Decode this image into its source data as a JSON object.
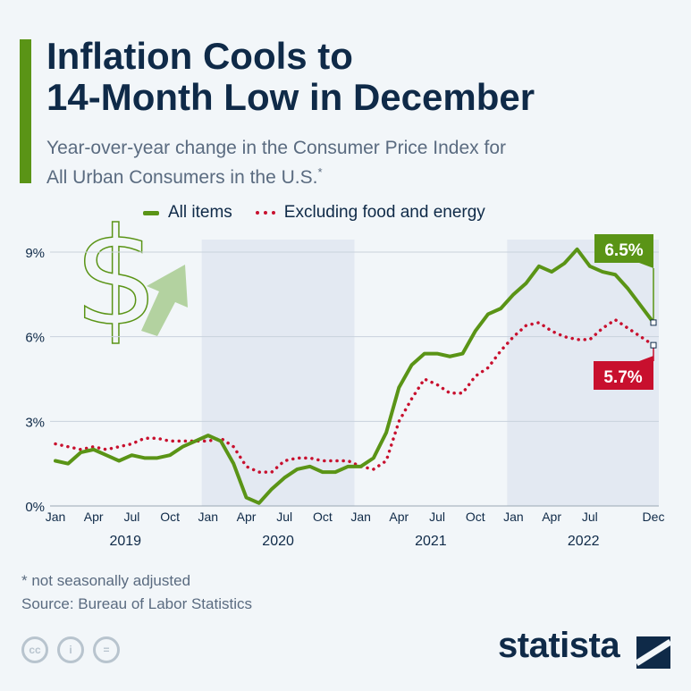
{
  "title": "Inflation Cools to 14-Month Low in December",
  "title_lines": [
    "Inflation Cools to",
    "14-Month Low in December"
  ],
  "subtitle_lines": [
    "Year-over-year change in the Consumer Price Index for",
    "All Urban Consumers in the U.S."
  ],
  "subtitle_mark": "*",
  "colors": {
    "all_items": "#5a9416",
    "core": "#c8102e",
    "accent": "#5a9416",
    "band": "#e3e9f2",
    "background": "#f2f6f9"
  },
  "footer": {
    "note": "* not seasonally adjusted",
    "source": "Source: Bureau of Labor Statistics",
    "brand": "statista",
    "cc_icons": [
      "cc-icon",
      "person-icon",
      "equals-icon"
    ],
    "cc_texts": [
      "cc",
      "i",
      "="
    ]
  },
  "chart_data": {
    "type": "line",
    "title": "Inflation Cools to 14-Month Low in December",
    "x": [
      "2019-01",
      "2019-02",
      "2019-03",
      "2019-04",
      "2019-05",
      "2019-06",
      "2019-07",
      "2019-08",
      "2019-09",
      "2019-10",
      "2019-11",
      "2019-12",
      "2020-01",
      "2020-02",
      "2020-03",
      "2020-04",
      "2020-05",
      "2020-06",
      "2020-07",
      "2020-08",
      "2020-09",
      "2020-10",
      "2020-11",
      "2020-12",
      "2021-01",
      "2021-02",
      "2021-03",
      "2021-04",
      "2021-05",
      "2021-06",
      "2021-07",
      "2021-08",
      "2021-09",
      "2021-10",
      "2021-11",
      "2021-12",
      "2022-01",
      "2022-02",
      "2022-03",
      "2022-04",
      "2022-05",
      "2022-06",
      "2022-07",
      "2022-08",
      "2022-09",
      "2022-10",
      "2022-11",
      "2022-12"
    ],
    "tick_labels": [
      "Jan",
      "Apr",
      "Jul",
      "Oct",
      "Jan",
      "Apr",
      "Jul",
      "Oct",
      "Jan",
      "Apr",
      "Jul",
      "Oct",
      "Jan",
      "Apr",
      "Jul",
      "Dec"
    ],
    "tick_index": [
      0,
      3,
      6,
      9,
      12,
      15,
      18,
      21,
      24,
      27,
      30,
      33,
      36,
      39,
      42,
      47
    ],
    "years": [
      "2019",
      "2020",
      "2021",
      "2022"
    ],
    "shaded_years": [
      "2020",
      "2022"
    ],
    "yticks": [
      "0%",
      "3%",
      "6%",
      "9%"
    ],
    "ylim": [
      0,
      9.5
    ],
    "grid": true,
    "legend": "top",
    "series": [
      {
        "name": "All items",
        "style": "solid",
        "values": [
          1.6,
          1.5,
          1.9,
          2.0,
          1.8,
          1.6,
          1.8,
          1.7,
          1.7,
          1.8,
          2.1,
          2.3,
          2.5,
          2.3,
          1.5,
          0.3,
          0.1,
          0.6,
          1.0,
          1.3,
          1.4,
          1.2,
          1.2,
          1.4,
          1.4,
          1.7,
          2.6,
          4.2,
          5.0,
          5.4,
          5.4,
          5.3,
          5.4,
          6.2,
          6.8,
          7.0,
          7.5,
          7.9,
          8.5,
          8.3,
          8.6,
          9.1,
          8.5,
          8.3,
          8.2,
          7.7,
          7.1,
          6.5
        ]
      },
      {
        "name": "Excluding food and energy",
        "style": "dotted",
        "values": [
          2.2,
          2.1,
          2.0,
          2.1,
          2.0,
          2.1,
          2.2,
          2.4,
          2.4,
          2.3,
          2.3,
          2.3,
          2.3,
          2.4,
          2.1,
          1.4,
          1.2,
          1.2,
          1.6,
          1.7,
          1.7,
          1.6,
          1.6,
          1.6,
          1.4,
          1.3,
          1.6,
          3.0,
          3.8,
          4.5,
          4.3,
          4.0,
          4.0,
          4.6,
          4.9,
          5.5,
          6.0,
          6.4,
          6.5,
          6.2,
          6.0,
          5.9,
          5.9,
          6.3,
          6.6,
          6.3,
          6.0,
          5.7
        ]
      }
    ],
    "end_labels": [
      "6.5%",
      "5.7%"
    ]
  }
}
